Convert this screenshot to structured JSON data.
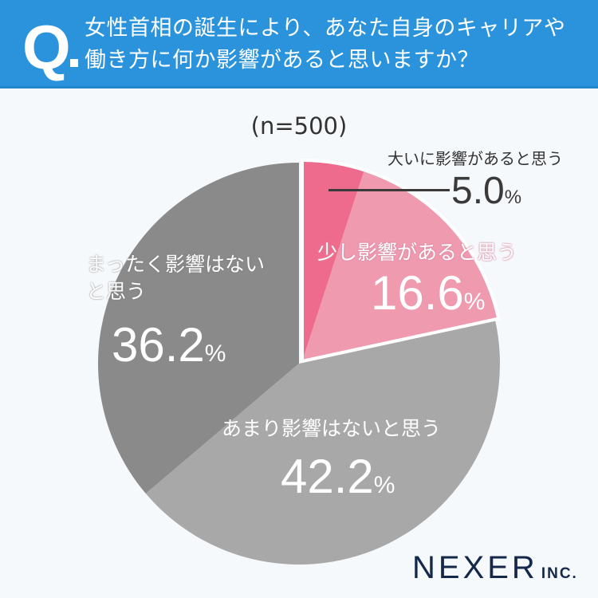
{
  "header": {
    "q_label": "Q",
    "question_line1": "女性首相の誕生により、あなた自身のキャリアや",
    "question_line2": "働き方に何か影響があると思いますか？",
    "bg_color": "#2a93dc"
  },
  "sample": "(n=500)",
  "slices": [
    {
      "label": "大いに影響があると思う",
      "value": "5.0",
      "unit": "%",
      "color": "#ef6b8d"
    },
    {
      "label": "少し影響があると思う",
      "value": "16.6",
      "unit": "%",
      "color": "#f09ab0"
    },
    {
      "label": "あまり影響はないと思う",
      "value": "42.2",
      "unit": "%",
      "color": "#a8a8a8"
    },
    {
      "label_line1": "まったく影響はない",
      "label_line2": "と思う",
      "value": "36.2",
      "unit": "%",
      "color": "#8a8a8a"
    }
  ],
  "logo": {
    "name": "NEXER",
    "suffix": "INC."
  },
  "chart_data": {
    "type": "pie",
    "title": "女性首相の誕生により、あなた自身のキャリアや働き方に何か影響があると思いますか？",
    "subtitle": "(n=500)",
    "categories": [
      "大いに影響があると思う",
      "少し影響があると思う",
      "あまり影響はないと思う",
      "まったく影響はないと思う"
    ],
    "values": [
      5.0,
      16.6,
      42.2,
      36.2
    ],
    "unit": "%",
    "colors": [
      "#ef6b8d",
      "#f09ab0",
      "#a8a8a8",
      "#8a8a8a"
    ],
    "start_angle": "12 o'clock, clockwise",
    "exploded": [
      "大いに影響があると思う",
      "少し影響があると思う"
    ]
  }
}
